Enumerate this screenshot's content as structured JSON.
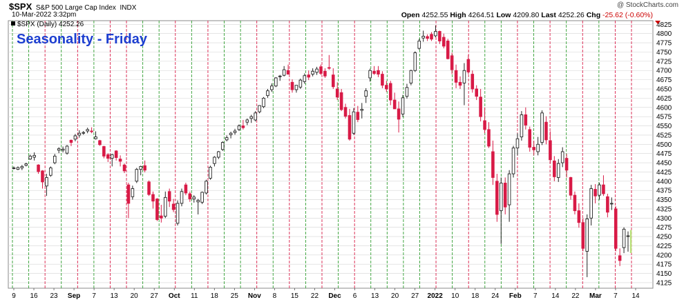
{
  "header": {
    "symbol": "$SPX",
    "description": "S&P 500 Large Cap Index",
    "exchange": "INDX",
    "timestamp": "10-Mar-2022 3:32pm",
    "watermark": "@ StockCharts.com",
    "open_label": "Open",
    "open": "4252.55",
    "high_label": "High",
    "high": "4264.51",
    "low_label": "Low",
    "low": "4209.80",
    "last_label": "Last",
    "last": "4252.26",
    "chg_label": "Chg",
    "chg": "-25.62 (-0.60%)"
  },
  "legend": "$SPX (Daily) 4252.26",
  "overlay_title": "Seasonality - Friday",
  "colors": {
    "up": "#ffffff",
    "down": "#d81a46",
    "outline": "#222222",
    "green_line": "#2e9d2e",
    "red_line": "#d81a46",
    "grid": "#d4d4d4",
    "title": "#1d3fd0",
    "current": "#b8e07a",
    "down_arrow": "#cc0000"
  },
  "chart_data": {
    "type": "candlestick",
    "title": "Seasonality - Friday",
    "ylim": [
      4110,
      4835
    ],
    "y_ticks": [
      4125,
      4150,
      4175,
      4200,
      4225,
      4250,
      4275,
      4300,
      4325,
      4350,
      4375,
      4400,
      4425,
      4450,
      4475,
      4500,
      4525,
      4550,
      4575,
      4600,
      4625,
      4650,
      4675,
      4700,
      4725,
      4750,
      4775,
      4800,
      4825
    ],
    "x_labels": [
      "9",
      "16",
      "23",
      "Sep",
      "7",
      "13",
      "20",
      "27",
      "Oct",
      "11",
      "18",
      "25",
      "Nov",
      "8",
      "15",
      "22",
      "Dec",
      "6",
      "13",
      "20",
      "27",
      "2022",
      "10",
      "18",
      "24",
      "Feb",
      "7",
      "14",
      "22",
      "Mar",
      "7",
      "14"
    ],
    "vertical_line_colors": [
      "green",
      "green",
      "red",
      "green",
      "red",
      "green",
      "red",
      "red",
      "green",
      "green",
      "red",
      "green",
      "red",
      "green",
      "green",
      "red",
      "green",
      "red",
      "green",
      "red",
      "green",
      "red",
      "green",
      "green",
      "green",
      "green",
      "red",
      "green",
      "red",
      "green",
      "green",
      "red",
      "green",
      "red",
      "green",
      "red",
      "green",
      "red",
      "red"
    ],
    "candles": [
      [
        4436,
        4440,
        4432,
        4436
      ],
      [
        4432,
        4440,
        4430,
        4437
      ],
      [
        4436,
        4444,
        4430,
        4440
      ],
      [
        4443,
        4450,
        4440,
        4447
      ],
      [
        4460,
        4472,
        4458,
        4468
      ],
      [
        4465,
        4478,
        4456,
        4470
      ],
      [
        4444,
        4446,
        4420,
        4426
      ],
      [
        4428,
        4430,
        4380,
        4398
      ],
      [
        4387,
        4420,
        4360,
        4410
      ],
      [
        4416,
        4440,
        4412,
        4436
      ],
      [
        4450,
        4474,
        4446,
        4468
      ],
      [
        4484,
        4492,
        4476,
        4488
      ],
      [
        4484,
        4494,
        4478,
        4487
      ],
      [
        4476,
        4498,
        4472,
        4495
      ],
      [
        4511,
        4513,
        4495,
        4505
      ],
      [
        4514,
        4528,
        4508,
        4523
      ],
      [
        4525,
        4538,
        4518,
        4530
      ],
      [
        4530,
        4536,
        4526,
        4532
      ],
      [
        4536,
        4545,
        4530,
        4540
      ],
      [
        4536,
        4546,
        4530,
        4535
      ],
      [
        4515,
        4535,
        4513,
        4520
      ],
      [
        4510,
        4512,
        4496,
        4499
      ],
      [
        4494,
        4496,
        4462,
        4468
      ],
      [
        4472,
        4476,
        4452,
        4462
      ],
      [
        4462,
        4474,
        4440,
        4472
      ],
      [
        4482,
        4484,
        4456,
        4464
      ],
      [
        4460,
        4470,
        4440,
        4454
      ],
      [
        4444,
        4448,
        4422,
        4428
      ],
      [
        4390,
        4396,
        4300,
        4340
      ],
      [
        4358,
        4388,
        4350,
        4380
      ],
      [
        4400,
        4436,
        4395,
        4432
      ],
      [
        4432,
        4442,
        4416,
        4440
      ],
      [
        4442,
        4456,
        4424,
        4430
      ],
      [
        4398,
        4402,
        4360,
        4364
      ],
      [
        4364,
        4372,
        4326,
        4346
      ],
      [
        4352,
        4354,
        4292,
        4296
      ],
      [
        4306,
        4336,
        4288,
        4300
      ],
      [
        4305,
        4372,
        4300,
        4356
      ],
      [
        4372,
        4380,
        4330,
        4346
      ],
      [
        4338,
        4352,
        4316,
        4323
      ],
      [
        4286,
        4348,
        4280,
        4340
      ],
      [
        4340,
        4380,
        4332,
        4372
      ],
      [
        4390,
        4396,
        4362,
        4368
      ],
      [
        4366,
        4372,
        4344,
        4352
      ],
      [
        4352,
        4362,
        4342,
        4357
      ],
      [
        4344,
        4352,
        4310,
        4348
      ],
      [
        4343,
        4372,
        4338,
        4370
      ],
      [
        4368,
        4404,
        4364,
        4400
      ],
      [
        4408,
        4442,
        4404,
        4438
      ],
      [
        4448,
        4468,
        4440,
        4465
      ],
      [
        4465,
        4482,
        4460,
        4480
      ],
      [
        4486,
        4508,
        4482,
        4505
      ],
      [
        4512,
        4524,
        4508,
        4518
      ],
      [
        4526,
        4534,
        4516,
        4530
      ],
      [
        4532,
        4542,
        4526,
        4536
      ],
      [
        4540,
        4554,
        4536,
        4550
      ],
      [
        4550,
        4566,
        4540,
        4545
      ],
      [
        4560,
        4570,
        4552,
        4566
      ],
      [
        4570,
        4580,
        4558,
        4575
      ],
      [
        4566,
        4590,
        4562,
        4585
      ],
      [
        4588,
        4606,
        4584,
        4605
      ],
      [
        4602,
        4628,
        4598,
        4625
      ],
      [
        4632,
        4650,
        4626,
        4645
      ],
      [
        4648,
        4665,
        4642,
        4658
      ],
      [
        4658,
        4682,
        4655,
        4680
      ],
      [
        4683,
        4688,
        4672,
        4685
      ],
      [
        4687,
        4712,
        4684,
        4702
      ],
      [
        4700,
        4716,
        4690,
        4690
      ],
      [
        4668,
        4676,
        4640,
        4648
      ],
      [
        4648,
        4660,
        4640,
        4660
      ],
      [
        4655,
        4678,
        4650,
        4674
      ],
      [
        4670,
        4692,
        4664,
        4686
      ],
      [
        4688,
        4700,
        4674,
        4682
      ],
      [
        4690,
        4706,
        4684,
        4698
      ],
      [
        4695,
        4710,
        4688,
        4704
      ],
      [
        4710,
        4716,
        4688,
        4692
      ],
      [
        4698,
        4706,
        4680,
        4685
      ],
      [
        4708,
        4742,
        4702,
        4706
      ],
      [
        4688,
        4706,
        4650,
        4656
      ],
      [
        4650,
        4668,
        4620,
        4628
      ],
      [
        4640,
        4650,
        4590,
        4594
      ],
      [
        4600,
        4610,
        4570,
        4576
      ],
      [
        4578,
        4596,
        4510,
        4514
      ],
      [
        4530,
        4598,
        4526,
        4588
      ],
      [
        4587,
        4604,
        4560,
        4567
      ],
      [
        4592,
        4612,
        4570,
        4595
      ],
      [
        4630,
        4652,
        4612,
        4645
      ],
      [
        4680,
        4705,
        4670,
        4700
      ],
      [
        4698,
        4712,
        4688,
        4692
      ],
      [
        4700,
        4712,
        4682,
        4690
      ],
      [
        4690,
        4698,
        4652,
        4660
      ],
      [
        4660,
        4672,
        4642,
        4650
      ],
      [
        4665,
        4672,
        4606,
        4620
      ],
      [
        4620,
        4640,
        4596,
        4596
      ],
      [
        4596,
        4616,
        4532,
        4568
      ],
      [
        4582,
        4634,
        4574,
        4626
      ],
      [
        4630,
        4664,
        4624,
        4654
      ],
      [
        4666,
        4702,
        4660,
        4700
      ],
      [
        4700,
        4752,
        4696,
        4748
      ],
      [
        4760,
        4786,
        4756,
        4780
      ],
      [
        4788,
        4808,
        4778,
        4793
      ],
      [
        4792,
        4798,
        4780,
        4787
      ],
      [
        4798,
        4804,
        4780,
        4785
      ],
      [
        4794,
        4822,
        4790,
        4806
      ],
      [
        4806,
        4808,
        4772,
        4780
      ],
      [
        4790,
        4800,
        4760,
        4766
      ],
      [
        4780,
        4786,
        4730,
        4732
      ],
      [
        4740,
        4748,
        4690,
        4702
      ],
      [
        4700,
        4716,
        4652,
        4668
      ],
      [
        4668,
        4684,
        4650,
        4660
      ],
      [
        4666,
        4720,
        4606,
        4700
      ],
      [
        4730,
        4742,
        4690,
        4696
      ],
      [
        4690,
        4700,
        4640,
        4650
      ],
      [
        4650,
        4660,
        4620,
        4630
      ],
      [
        4628,
        4650,
        4562,
        4575
      ],
      [
        4564,
        4600,
        4530,
        4540
      ],
      [
        4540,
        4560,
        4490,
        4495
      ],
      [
        4480,
        4510,
        4390,
        4410
      ],
      [
        4400,
        4420,
        4290,
        4310
      ],
      [
        4320,
        4410,
        4230,
        4395
      ],
      [
        4395,
        4410,
        4310,
        4330
      ],
      [
        4336,
        4430,
        4290,
        4420
      ],
      [
        4420,
        4496,
        4410,
        4490
      ],
      [
        4490,
        4530,
        4470,
        4515
      ],
      [
        4520,
        4590,
        4510,
        4580
      ],
      [
        4580,
        4600,
        4540,
        4552
      ],
      [
        4540,
        4548,
        4480,
        4492
      ],
      [
        4492,
        4510,
        4470,
        4485
      ],
      [
        4480,
        4520,
        4470,
        4500
      ],
      [
        4505,
        4592,
        4498,
        4585
      ],
      [
        4560,
        4576,
        4500,
        4512
      ],
      [
        4510,
        4535,
        4448,
        4458
      ],
      [
        4455,
        4468,
        4400,
        4412
      ],
      [
        4410,
        4460,
        4398,
        4448
      ],
      [
        4450,
        4492,
        4438,
        4480
      ],
      [
        4462,
        4474,
        4410,
        4430
      ],
      [
        4410,
        4412,
        4350,
        4362
      ],
      [
        4362,
        4372,
        4310,
        4320
      ],
      [
        4320,
        4340,
        4274,
        4288
      ],
      [
        4288,
        4300,
        4210,
        4218
      ],
      [
        4210,
        4310,
        4140,
        4298
      ],
      [
        4300,
        4390,
        4280,
        4380
      ],
      [
        4378,
        4392,
        4340,
        4360
      ],
      [
        4362,
        4396,
        4350,
        4390
      ],
      [
        4390,
        4416,
        4360,
        4366
      ],
      [
        4358,
        4366,
        4302,
        4316
      ],
      [
        4340,
        4356,
        4322,
        4340
      ],
      [
        4325,
        4332,
        4210,
        4218
      ],
      [
        4198,
        4218,
        4170,
        4185
      ],
      [
        4220,
        4275,
        4205,
        4270
      ],
      [
        4252,
        4264,
        4209,
        4252
      ]
    ]
  }
}
